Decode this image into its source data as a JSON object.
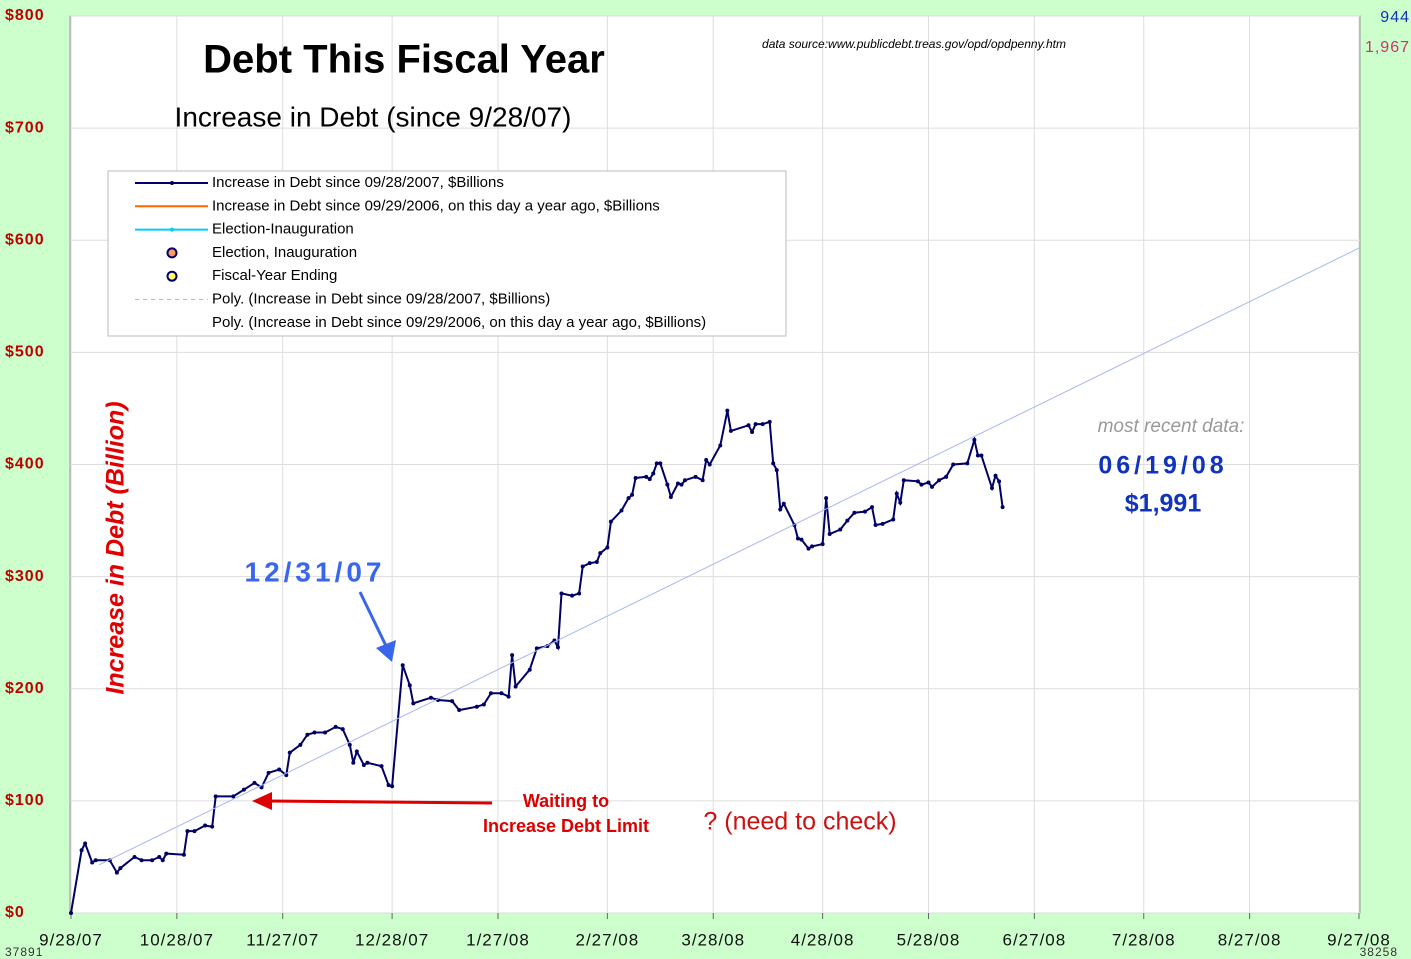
{
  "chart_data": {
    "type": "line",
    "title": "Debt This Fiscal Year",
    "subtitle": "Increase  in  Debt  (since  9/28/07)",
    "y_label": "Increase in Debt (Billion)",
    "source": "data  source:www.publicdebt.treas.gov/opd/opdpenny.htm",
    "annotations": [
      "12/31/07",
      "Waiting to",
      "Increase Debt Limit",
      "? (need  to  check)",
      "most  recent  data:",
      "06/19/08",
      "$1,991"
    ],
    "corner_labels": [
      "37891",
      "38258",
      "944",
      "1,967"
    ],
    "xlim": [
      "2007-09-28",
      "2008-09-27"
    ],
    "xticks": [
      {
        "value": "2007-09-28",
        "label": "9/28/07"
      },
      {
        "value": "2007-10-28",
        "label": "10/28/07"
      },
      {
        "value": "2007-11-27",
        "label": "11/27/07"
      },
      {
        "value": "2007-12-28",
        "label": "12/28/07"
      },
      {
        "value": "2008-01-27",
        "label": "1/27/08"
      },
      {
        "value": "2008-02-27",
        "label": "2/27/08"
      },
      {
        "value": "2008-03-28",
        "label": "3/28/08"
      },
      {
        "value": "2008-04-28",
        "label": "4/28/08"
      },
      {
        "value": "2008-05-28",
        "label": "5/28/08"
      },
      {
        "value": "2008-06-27",
        "label": "6/27/08"
      },
      {
        "value": "2008-07-28",
        "label": "7/28/08"
      },
      {
        "value": "2008-08-27",
        "label": "8/27/08"
      },
      {
        "value": "2008-09-27",
        "label": "9/27/08"
      }
    ],
    "ylim": [
      0,
      800
    ],
    "yticks": [
      {
        "value": 0,
        "label": "$0"
      },
      {
        "value": 100,
        "label": "$100"
      },
      {
        "value": 200,
        "label": "$200"
      },
      {
        "value": 300,
        "label": "$300"
      },
      {
        "value": 400,
        "label": "$400"
      },
      {
        "value": 500,
        "label": "$500"
      },
      {
        "value": 600,
        "label": "$600"
      },
      {
        "value": 700,
        "label": "$700"
      },
      {
        "value": 800,
        "label": "$800"
      }
    ],
    "grid": true,
    "series": [
      {
        "name": "Increase  in  Debt  since   09/28/2007,   $Billions",
        "color": "#000066",
        "style": "line-dots",
        "x": [
          "2007-09-28",
          "2007-10-01",
          "2007-10-02",
          "2007-10-04",
          "2007-10-05",
          "2007-10-09",
          "2007-10-11",
          "2007-10-12",
          "2007-10-16",
          "2007-10-18",
          "2007-10-21",
          "2007-10-23",
          "2007-10-24",
          "2007-10-25",
          "2007-10-30",
          "2007-10-31",
          "2007-11-02",
          "2007-11-05",
          "2007-11-07",
          "2007-11-08",
          "2007-11-13",
          "2007-11-16",
          "2007-11-19",
          "2007-11-21",
          "2007-11-23",
          "2007-11-26",
          "2007-11-28",
          "2007-11-29",
          "2007-12-02",
          "2007-12-04",
          "2007-12-06",
          "2007-12-09",
          "2007-12-12",
          "2007-12-14",
          "2007-12-16",
          "2007-12-17",
          "2007-12-18",
          "2007-12-20",
          "2007-12-21",
          "2007-12-25",
          "2007-12-27",
          "2007-12-28",
          "2007-12-31",
          "2008-01-02",
          "2008-01-03",
          "2008-01-08",
          "2008-01-10",
          "2008-01-14",
          "2008-01-16",
          "2008-01-21",
          "2008-01-23",
          "2008-01-25",
          "2008-01-28",
          "2008-01-30",
          "2008-01-31",
          "2008-02-01",
          "2008-02-05",
          "2008-02-07",
          "2008-02-10",
          "2008-02-12",
          "2008-02-13",
          "2008-02-14",
          "2008-02-17",
          "2008-02-19",
          "2008-02-20",
          "2008-02-22",
          "2008-02-24",
          "2008-02-25",
          "2008-02-27",
          "2008-02-28",
          "2008-03-02",
          "2008-03-04",
          "2008-03-05",
          "2008-03-06",
          "2008-03-09",
          "2008-03-10",
          "2008-03-11",
          "2008-03-12",
          "2008-03-13",
          "2008-03-15",
          "2008-03-16",
          "2008-03-18",
          "2008-03-19",
          "2008-03-20",
          "2008-03-23",
          "2008-03-25",
          "2008-03-26",
          "2008-03-27",
          "2008-03-30",
          "2008-04-01",
          "2008-04-02",
          "2008-04-07",
          "2008-04-08",
          "2008-04-09",
          "2008-04-11",
          "2008-04-13",
          "2008-04-14",
          "2008-04-15",
          "2008-04-16",
          "2008-04-17",
          "2008-04-20",
          "2008-04-21",
          "2008-04-22",
          "2008-04-24",
          "2008-04-25",
          "2008-04-28",
          "2008-04-29",
          "2008-04-30",
          "2008-05-03",
          "2008-05-05",
          "2008-05-07",
          "2008-05-10",
          "2008-05-12",
          "2008-05-13",
          "2008-05-15",
          "2008-05-18",
          "2008-05-19",
          "2008-05-20",
          "2008-05-21",
          "2008-05-25",
          "2008-05-26",
          "2008-05-28",
          "2008-05-29",
          "2008-05-31",
          "2008-06-02",
          "2008-06-04",
          "2008-06-08",
          "2008-06-10",
          "2008-06-11",
          "2008-06-12",
          "2008-06-15",
          "2008-06-16",
          "2008-06-17",
          "2008-06-18"
        ],
        "values": [
          0,
          56,
          62,
          45,
          47,
          47,
          36,
          40,
          50,
          47,
          47,
          50,
          47,
          53,
          52,
          73,
          73,
          78,
          77,
          104,
          104,
          110,
          116,
          112,
          125,
          128,
          123,
          143,
          150,
          159,
          161,
          161,
          166,
          164,
          150,
          134,
          144,
          132,
          134,
          131,
          114,
          113,
          221,
          203,
          187,
          192,
          190,
          189,
          181,
          184,
          186,
          196,
          196,
          193,
          230,
          202,
          217,
          236,
          238,
          243,
          237,
          285,
          283,
          285,
          309,
          312,
          313,
          321,
          326,
          349,
          359,
          370,
          373,
          388,
          389,
          387,
          392,
          401,
          401,
          382,
          371,
          383,
          382,
          386,
          389,
          386,
          404,
          400,
          417,
          448,
          430,
          435,
          429,
          436,
          436,
          438,
          401,
          395,
          360,
          365,
          346,
          334,
          333,
          325,
          327,
          329,
          370,
          338,
          342,
          350,
          357,
          358,
          362,
          346,
          347,
          351,
          374,
          366,
          386,
          385,
          382,
          384,
          380,
          386,
          389,
          400,
          401,
          422,
          408,
          408,
          379,
          390,
          385,
          362
        ]
      },
      {
        "name": "Increase  in  Debt  since   09/29/2006,  on  this  day  a  year  ago,   $Billions",
        "color": "#ff6600",
        "style": "line"
      },
      {
        "name": "Election-Inauguration",
        "color": "#00ccff",
        "style": "line-dots"
      },
      {
        "name": "Election,  Inauguration",
        "color": "#ff9966",
        "style": "dot"
      },
      {
        "name": "Fiscal-Year  Ending",
        "color": "#ffff66",
        "style": "dot"
      },
      {
        "name": "Poly.  (Increase  in  Debt  since    09/28/2007,   $Billions)",
        "color": "#a8b8f0",
        "style": "dash",
        "x": [
          "2007-10-06",
          "2008-09-27"
        ],
        "values": [
          43,
          593
        ]
      },
      {
        "name": "Poly.  (Increase  in  Debt  since   09/29/2006,  on  this  day  a  year  ago,   $Billions)",
        "color": "#ffffff",
        "style": "dash"
      }
    ]
  }
}
